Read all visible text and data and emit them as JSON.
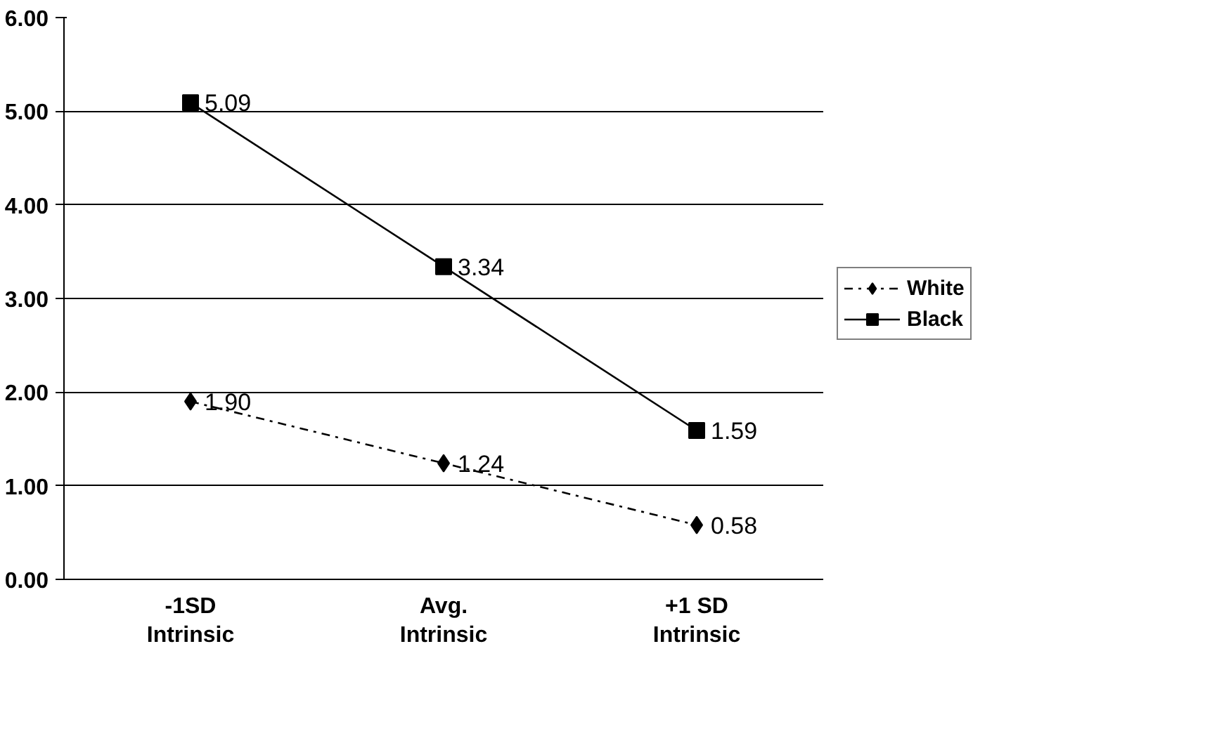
{
  "chart_data": {
    "type": "line",
    "categories": [
      "-1SD\nIntrinsic",
      "Avg.\nIntrinsic",
      "+1 SD\nIntrinsic"
    ],
    "series": [
      {
        "name": "White",
        "color": "#000000",
        "values": [
          1.9,
          1.24,
          0.58
        ],
        "value_labels": [
          "1.90",
          "1.24",
          "0.58"
        ],
        "marker": "diamond",
        "line_style": "dashdot"
      },
      {
        "name": "Black",
        "color": "#000000",
        "values": [
          5.09,
          3.34,
          1.59
        ],
        "value_labels": [
          "5.09",
          "3.34",
          "1.59"
        ],
        "marker": "square",
        "line_style": "solid"
      }
    ],
    "ylim": [
      0,
      6
    ],
    "yticks": [
      {
        "value": 0,
        "label": "0.00"
      },
      {
        "value": 1,
        "label": "1.00"
      },
      {
        "value": 2,
        "label": "2.00"
      },
      {
        "value": 3,
        "label": "3.00"
      },
      {
        "value": 4,
        "label": "4.00"
      },
      {
        "value": 5,
        "label": "5.00"
      },
      {
        "value": 6,
        "label": "6.00"
      }
    ],
    "grid": "y",
    "legend": "right"
  }
}
